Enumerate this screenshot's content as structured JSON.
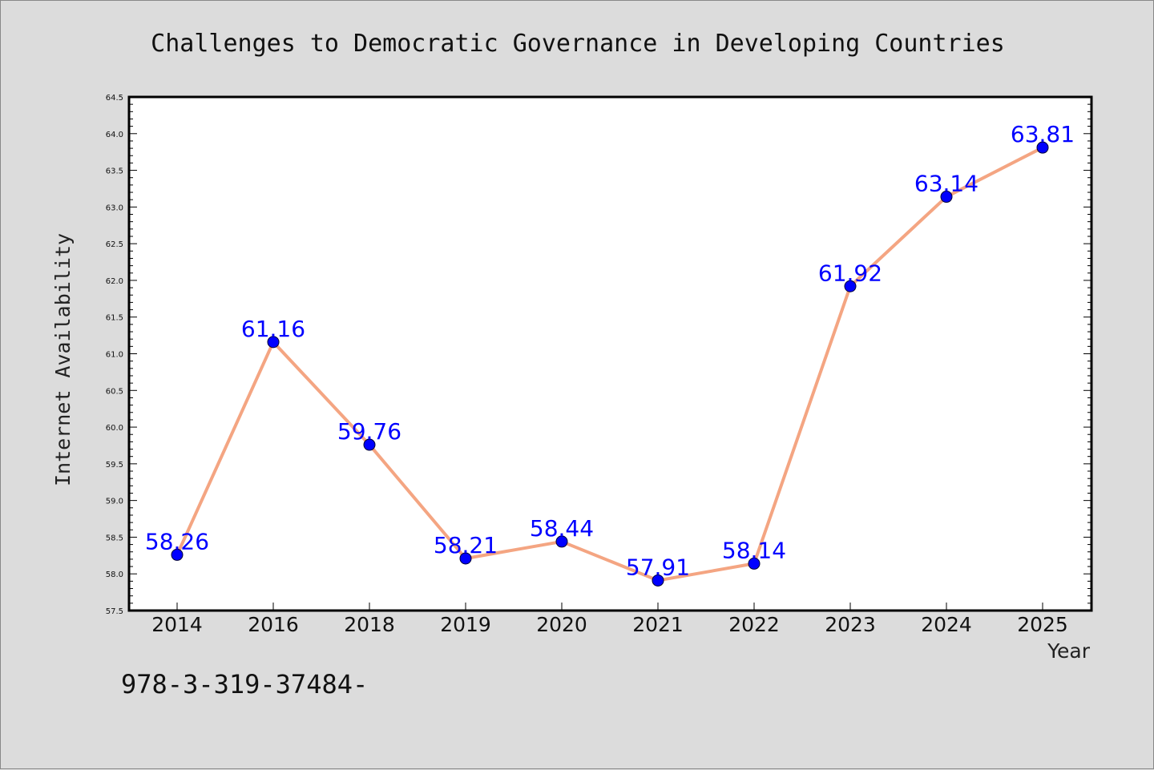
{
  "chart_data": {
    "type": "line",
    "title": "Challenges to Democratic Governance in Developing Countries",
    "xlabel": "Year",
    "ylabel": "Internet Availability",
    "categories": [
      "2014",
      "2016",
      "2018",
      "2019",
      "2020",
      "2021",
      "2022",
      "2023",
      "2024",
      "2025"
    ],
    "values": [
      58.26,
      61.16,
      59.76,
      58.21,
      58.44,
      57.91,
      58.14,
      61.92,
      63.14,
      63.81
    ],
    "data_labels": [
      "58.26",
      "61.16",
      "59.76",
      "58.21",
      "58.44",
      "57.91",
      "58.14",
      "61.92",
      "63.14",
      "63.81"
    ],
    "ylim": [
      57.5,
      64.5
    ],
    "yticks": [
      "57.5",
      "58.0",
      "58.5",
      "59.0",
      "59.5",
      "60.0",
      "60.5",
      "61.0",
      "61.5",
      "62.0",
      "62.5",
      "63.0",
      "63.5",
      "64.0",
      "64.5"
    ],
    "grid": false,
    "line_color": "#f4a582",
    "marker_color": "#0000ff",
    "label_color": "#0000ff"
  },
  "footer_text": "978-3-319-37484-"
}
